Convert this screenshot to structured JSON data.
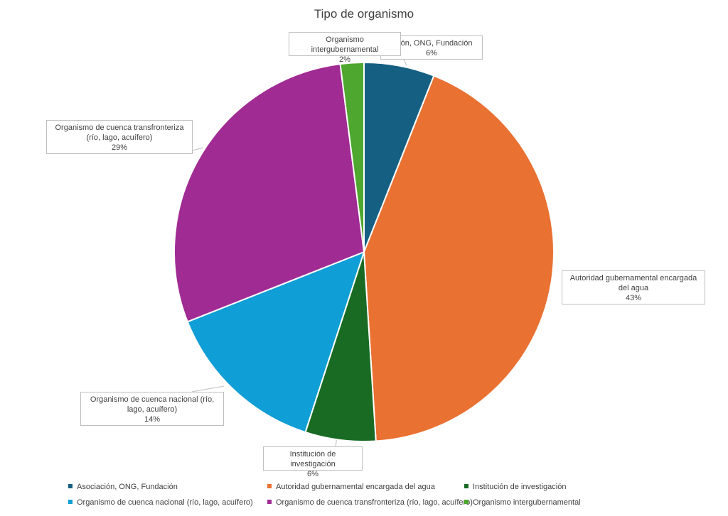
{
  "chart_data": {
    "type": "pie",
    "title": "Tipo de organismo",
    "categories": [
      "Asociación, ONG, Fundación",
      "Autoridad gubernamental encargada del agua",
      "Institución de investigación",
      "Organismo de cuenca nacional (río, lago, acuífero)",
      "Organismo de cuenca transfronteriza (río, lago, acuífero)",
      "Organismo intergubernamental"
    ],
    "values": [
      6,
      43,
      6,
      14,
      29,
      2
    ],
    "value_labels": [
      "6%",
      "43%",
      "6%",
      "14%",
      "29%",
      "2%"
    ],
    "callout_labels": [
      "ación, ONG, Fundación",
      "Autoridad gubernamental encargada del agua",
      "Institución de investigación",
      "Organismo de cuenca nacional (río, lago, acuífero)",
      "Organismo de cuenca transfronteriza (río, lago, acuífero)",
      "Organismo intergubernamental"
    ],
    "colors": [
      "#156082",
      "#e97132",
      "#196b24",
      "#0f9ed5",
      "#a02b93",
      "#4ea72e"
    ],
    "legend_position": "bottom"
  }
}
